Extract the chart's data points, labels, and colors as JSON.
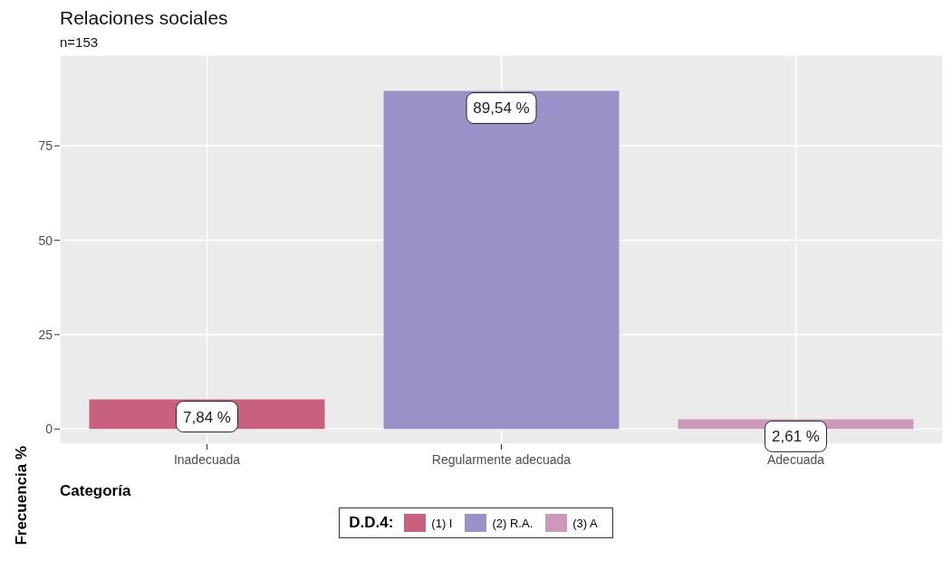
{
  "chart_data": {
    "type": "bar",
    "title": "Relaciones sociales",
    "subtitle": "n=153",
    "xlabel": "Categoría",
    "ylabel": "Frecuencia %",
    "legend_title": "D.D.4:",
    "categories": [
      "Inadecuada",
      "Regularmente adecuada",
      "Adecuada"
    ],
    "series": [
      {
        "name": "(1) I",
        "color": "#c8617f",
        "values": [
          7.84,
          null,
          null
        ],
        "value_labels": [
          "7,84 %",
          null,
          null
        ]
      },
      {
        "name": "(2) R.A.",
        "color": "#9b91c9",
        "values": [
          null,
          89.54,
          null
        ],
        "value_labels": [
          null,
          "89,54 %",
          null
        ]
      },
      {
        "name": "(3) A",
        "color": "#cc99bb",
        "values": [
          null,
          null,
          2.61
        ],
        "value_labels": [
          null,
          null,
          "2,61 %"
        ]
      }
    ],
    "ylim": [
      -4,
      99
    ],
    "yticks": [
      0,
      25,
      50,
      75
    ],
    "grid": true,
    "legend": "bottom"
  }
}
